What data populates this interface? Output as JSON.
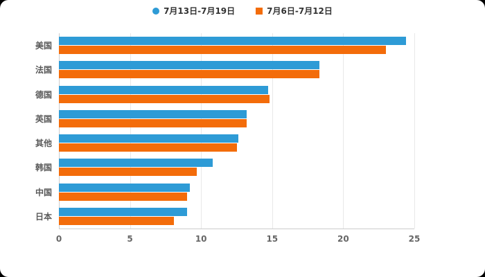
{
  "page": {
    "background_color": "#000000",
    "panel_color": "#ffffff"
  },
  "legend": {
    "items": [
      {
        "label": "7月13日-7月19日",
        "marker": "circle",
        "color": "#2E9BD6"
      },
      {
        "label": "7月6日-7月12日",
        "marker": "square",
        "color": "#F36C0A"
      }
    ]
  },
  "chart_data": {
    "type": "bar",
    "orientation": "horizontal",
    "title": "",
    "xlabel": "",
    "ylabel": "",
    "categories": [
      "美国",
      "法国",
      "德国",
      "英国",
      "其他",
      "韩国",
      "中国",
      "日本"
    ],
    "series": [
      {
        "name": "7月13日-7月19日",
        "color": "#2E9BD6",
        "values": [
          24.4,
          18.3,
          14.7,
          13.2,
          12.6,
          10.8,
          9.2,
          9.0
        ]
      },
      {
        "name": "7月6日-7月12日",
        "color": "#F36C0A",
        "values": [
          23.0,
          18.3,
          14.8,
          13.2,
          12.5,
          9.7,
          9.0,
          8.1
        ]
      }
    ],
    "xlim": [
      0,
      25
    ],
    "xticks": [
      0,
      5,
      10,
      15,
      20,
      25
    ],
    "grid": true,
    "legend_position": "top",
    "colors": {
      "series1": "#2E9BD6",
      "series2": "#F36C0A",
      "gridline": "#e8e8e8",
      "axis": "#cccccc",
      "label": "#595959",
      "tick": "#666666"
    }
  }
}
